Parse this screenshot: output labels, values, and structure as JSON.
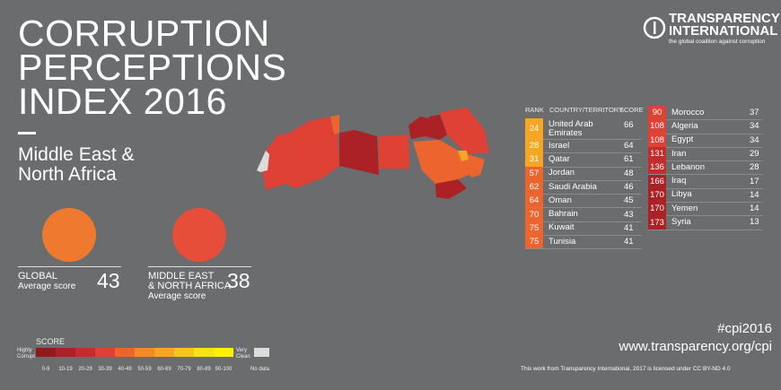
{
  "header": {
    "title_lines": [
      "CORRUPTION",
      "PERCEPTIONS",
      "INDEX 2016"
    ],
    "region_lines": [
      "Middle East &",
      "North Africa"
    ]
  },
  "logo": {
    "name_lines": [
      "TRANSPARENCY",
      "INTERNATIONAL"
    ],
    "tagline": "the global coalition against corruption"
  },
  "averages": [
    {
      "label_lines": [
        "GLOBAL"
      ],
      "sublabel": "Average score",
      "score": 43,
      "color": "#ef7a2f"
    },
    {
      "label_lines": [
        "MIDDLE EAST",
        "& NORTH AFRICA"
      ],
      "sublabel": "Average score",
      "score": 38,
      "color": "#e64e39"
    }
  ],
  "table": {
    "columns": [
      "RANK",
      "COUNTRY/TERRITORY",
      "SCORE"
    ],
    "rows": [
      [
        24,
        "United Arab Emirates",
        66
      ],
      [
        28,
        "Israel",
        64
      ],
      [
        31,
        "Qatar",
        61
      ],
      [
        57,
        "Jordan",
        48
      ],
      [
        62,
        "Saudi Arabia",
        46
      ],
      [
        64,
        "Oman",
        45
      ],
      [
        70,
        "Bahrain",
        43
      ],
      [
        75,
        "Kuwait",
        41
      ],
      [
        75,
        "Tunisia",
        41
      ],
      [
        90,
        "Morocco",
        37
      ],
      [
        108,
        "Algeria",
        34
      ],
      [
        108,
        "Egypt",
        34
      ],
      [
        131,
        "Iran",
        29
      ],
      [
        136,
        "Lebanon",
        28
      ],
      [
        166,
        "Iraq",
        17
      ],
      [
        170,
        "Libya",
        14
      ],
      [
        170,
        "Yemen",
        14
      ],
      [
        173,
        "Syria",
        13
      ]
    ]
  },
  "legend": {
    "title": "SCORE",
    "low_lines": [
      "Highly",
      "Corrupt"
    ],
    "high_lines": [
      "Very",
      "Clean"
    ],
    "no_data": "No data",
    "bins": [
      "0-9",
      "10-19",
      "20-29",
      "30-39",
      "40-49",
      "50-59",
      "60-69",
      "70-79",
      "80-89",
      "90-100"
    ],
    "colors": [
      "#8e1b1f",
      "#ab2125",
      "#c52c2c",
      "#df4235",
      "#ec652f",
      "#f28a28",
      "#f5a623",
      "#f8c51c",
      "#fbe214",
      "#fff200"
    ],
    "no_data_color": "#dcdcdc"
  },
  "footer": {
    "hashtag": "#cpi2016",
    "url": "www.transparency.org/cpi",
    "license": "This work from Transparency International, 2017 is licensed under CC BY-ND 4.0"
  }
}
